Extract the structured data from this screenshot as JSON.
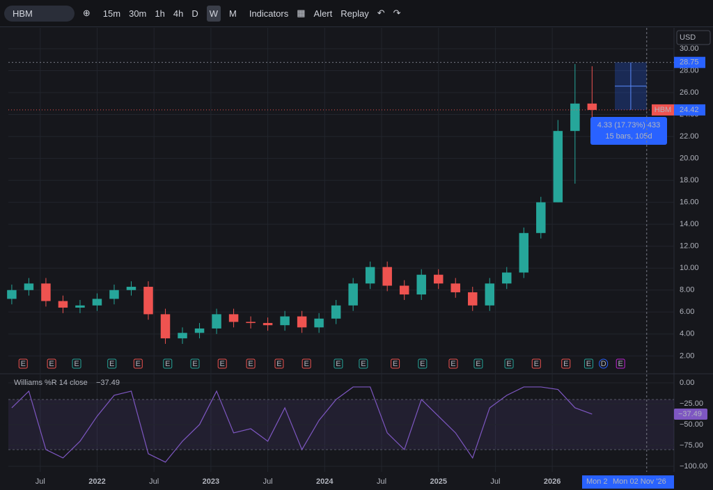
{
  "toolbar": {
    "symbol": "HBM",
    "intervals": [
      "15m",
      "30m",
      "1h",
      "4h",
      "D",
      "W",
      "M"
    ],
    "active": "W",
    "indicators": "Indicators",
    "alert": "Alert",
    "replay": "Replay"
  },
  "chart_data": {
    "type": "candlestick",
    "symbol": "HBM",
    "currency": "USD",
    "x": [
      2021.25,
      2021.4,
      2021.55,
      2021.7,
      2021.85,
      2022,
      2022.15,
      2022.3,
      2022.45,
      2022.6,
      2022.75,
      2022.9,
      2023.05,
      2023.2,
      2023.35,
      2023.5,
      2023.65,
      2023.8,
      2023.95,
      2024.1,
      2024.25,
      2024.4,
      2024.55,
      2024.7,
      2024.85,
      2025,
      2025.15,
      2025.3,
      2025.45,
      2025.6,
      2025.75,
      2025.9,
      2026.05,
      2026.2,
      2026.35
    ],
    "open": [
      7.2,
      8.0,
      8.6,
      7.0,
      6.4,
      6.6,
      7.2,
      8.0,
      8.3,
      5.8,
      3.6,
      4.1,
      4.5,
      5.8,
      5.1,
      5.0,
      4.8,
      5.6,
      4.6,
      5.4,
      6.6,
      8.6,
      10.1,
      8.4,
      7.6,
      9.4,
      8.6,
      7.8,
      6.6,
      8.6,
      9.6,
      13.2,
      16.0,
      22.5,
      25.0
    ],
    "high": [
      8.5,
      9.1,
      9.1,
      7.5,
      7.1,
      7.7,
      8.5,
      8.8,
      8.8,
      6.3,
      4.6,
      5.0,
      6.3,
      6.3,
      5.6,
      5.5,
      6.1,
      6.1,
      5.9,
      7.1,
      9.1,
      10.6,
      10.6,
      8.9,
      9.9,
      9.9,
      9.1,
      8.3,
      9.1,
      10.1,
      13.7,
      16.5,
      23.5,
      28.6,
      28.4
    ],
    "low": [
      6.7,
      7.5,
      6.5,
      5.9,
      5.9,
      6.1,
      6.7,
      7.5,
      5.3,
      3.1,
      3.1,
      3.6,
      4.0,
      4.6,
      4.5,
      4.3,
      4.3,
      4.1,
      4.1,
      4.9,
      6.1,
      8.1,
      7.9,
      7.1,
      7.1,
      8.1,
      7.3,
      6.1,
      6.1,
      8.1,
      9.1,
      12.7,
      16.0,
      17.7,
      22.0
    ],
    "close": [
      8.0,
      8.6,
      7.0,
      6.4,
      6.6,
      7.2,
      8.0,
      8.3,
      5.8,
      3.6,
      4.1,
      4.5,
      5.8,
      5.1,
      5.0,
      4.8,
      5.6,
      4.6,
      5.4,
      6.6,
      8.6,
      10.1,
      8.4,
      7.6,
      9.4,
      8.6,
      7.8,
      6.6,
      8.6,
      9.6,
      13.2,
      16.0,
      22.5,
      25.0,
      24.42
    ],
    "up_color": "#26a69a",
    "down_color": "#ef5350",
    "xlim": [
      2021.22,
      2027.07
    ],
    "xticks": [
      {
        "value": 2021.5,
        "label": "Jul"
      },
      2022,
      {
        "value": 2022.5,
        "label": "Jul"
      },
      2023,
      {
        "value": 2023.5,
        "label": "Jul"
      },
      2024,
      {
        "value": 2024.5,
        "label": "Jul"
      },
      2025,
      {
        "value": 2025.5,
        "label": "Jul"
      },
      2026
    ],
    "ylim": [
      0.5,
      31.9
    ],
    "yticks": [
      {
        "value": 2,
        "label": "2.00"
      },
      {
        "value": 4,
        "label": "4.00"
      },
      {
        "value": 6,
        "label": "6.00"
      },
      {
        "value": 8,
        "label": "8.00"
      },
      {
        "value": 10,
        "label": "10.00"
      },
      {
        "value": 12,
        "label": "12.00"
      },
      {
        "value": 14,
        "label": "14.00"
      },
      {
        "value": 16,
        "label": "16.00"
      },
      {
        "value": 18,
        "label": "18.00"
      },
      {
        "value": 20,
        "label": "20.00"
      },
      {
        "value": 22,
        "label": "22.00"
      },
      {
        "value": 24,
        "label": "24.00"
      },
      {
        "value": 26,
        "label": "26.00"
      },
      {
        "value": 28,
        "label": "28.00"
      },
      {
        "value": 30,
        "label": "30.00"
      }
    ],
    "grid": true,
    "high_line": {
      "value": 28.75,
      "label": "28.75"
    },
    "last_price": {
      "value": 24.42,
      "label": "24.42"
    },
    "measure": {
      "from": 24.42,
      "to": 28.75,
      "x_from": 2026.55,
      "x_to": 2026.83,
      "text": "4.33 (17.73%) 433",
      "bars": "15 bars, 105d"
    },
    "crosshair": {
      "x": 2026.83,
      "label": "Mon 02 Nov '26",
      "short": "Mon 2"
    },
    "events": [
      {
        "x": 2021.35,
        "label": "E",
        "color": "#ef5350"
      },
      {
        "x": 2021.6,
        "label": "E",
        "color": "#ef5350"
      },
      {
        "x": 2021.82,
        "label": "E",
        "color": "#26a69a"
      },
      {
        "x": 2022.13,
        "label": "E",
        "color": "#26a69a"
      },
      {
        "x": 2022.36,
        "label": "E",
        "color": "#ef5350"
      },
      {
        "x": 2022.62,
        "label": "E",
        "color": "#26a69a"
      },
      {
        "x": 2022.86,
        "label": "E",
        "color": "#26a69a"
      },
      {
        "x": 2023.1,
        "label": "E",
        "color": "#ef5350"
      },
      {
        "x": 2023.35,
        "label": "E",
        "color": "#ef5350"
      },
      {
        "x": 2023.6,
        "label": "E",
        "color": "#ef5350"
      },
      {
        "x": 2023.84,
        "label": "E",
        "color": "#ef5350"
      },
      {
        "x": 2024.12,
        "label": "E",
        "color": "#26a69a"
      },
      {
        "x": 2024.34,
        "label": "E",
        "color": "#26a69a"
      },
      {
        "x": 2024.62,
        "label": "E",
        "color": "#ef5350"
      },
      {
        "x": 2024.86,
        "label": "E",
        "color": "#26a69a"
      },
      {
        "x": 2025.13,
        "label": "E",
        "color": "#ef5350"
      },
      {
        "x": 2025.35,
        "label": "E",
        "color": "#26a69a"
      },
      {
        "x": 2025.62,
        "label": "E",
        "color": "#26a69a"
      },
      {
        "x": 2025.86,
        "label": "E",
        "color": "#ef5350"
      },
      {
        "x": 2026.12,
        "label": "E",
        "color": "#ef5350"
      },
      {
        "x": 2026.32,
        "label": "E",
        "color": "#26a69a"
      },
      {
        "x": 2026.45,
        "label": "D",
        "color": "#2962ff"
      },
      {
        "x": 2026.6,
        "label": "E",
        "color": "#c026d3"
      }
    ],
    "indicator": {
      "title": "Williams %R 14 close",
      "last_label": "−37.49",
      "color": "#7e57c2",
      "values": [
        -30,
        -10,
        -80,
        -90,
        -70,
        -40,
        -15,
        -10,
        -85,
        -95,
        -70,
        -50,
        -10,
        -60,
        -55,
        -70,
        -30,
        -80,
        -45,
        -20,
        -5,
        -5,
        -60,
        -80,
        -20,
        -40,
        -60,
        -90,
        -30,
        -15,
        -5,
        -5,
        -8,
        -30,
        -37.49
      ],
      "ylim": [
        -106.7,
        8.3
      ],
      "yticks": [
        {
          "value": 0,
          "label": "0.00"
        },
        {
          "value": -25,
          "label": "−25.00"
        },
        {
          "value": -50,
          "label": "−50.00"
        },
        {
          "value": -75,
          "label": "−75.00"
        },
        {
          "value": -100,
          "label": "−100.00"
        }
      ],
      "levels": [
        -20,
        -80
      ]
    }
  }
}
